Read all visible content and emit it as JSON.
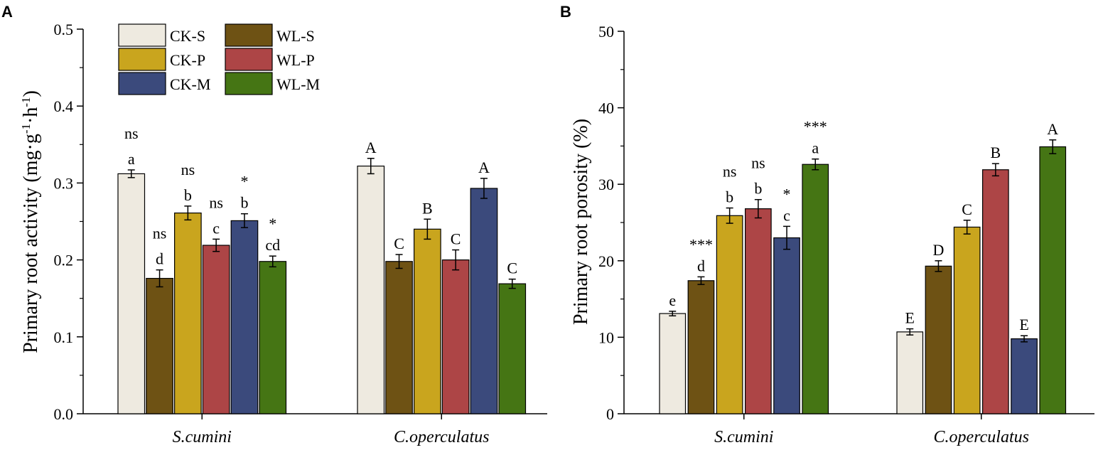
{
  "colors": {
    "CK-S": "#eeeae0",
    "WL-S": "#6e5214",
    "CK-P": "#c9a51e",
    "WL-P": "#ad4546",
    "CK-M": "#3b4a7c",
    "WL-M": "#457514"
  },
  "chart_data": [
    {
      "type": "bar",
      "panel": "A",
      "ylabel_prefix": "Primary root activity (mg·g",
      "ylabel_sup1": "-1",
      "ylabel_mid": "·h",
      "ylabel_sup2": "-1",
      "ylabel_suffix": ")",
      "ylim": [
        0,
        0.5
      ],
      "yticks": [
        "0.0",
        "0.1",
        "0.2",
        "0.3",
        "0.4",
        "0.5"
      ],
      "categories": [
        "S.cumini",
        "C.operculatus"
      ],
      "legend": {
        "placement": "top-left",
        "entries": [
          "CK-S",
          "WL-S",
          "CK-P",
          "WL-P",
          "CK-M",
          "WL-M"
        ]
      },
      "series": [
        {
          "name": "CK-S",
          "values": [
            0.312,
            0.322
          ],
          "errors": [
            0.005,
            0.01
          ],
          "letters": [
            "a",
            "A"
          ],
          "signif": [
            "ns",
            ""
          ]
        },
        {
          "name": "WL-S",
          "values": [
            0.176,
            0.198
          ],
          "errors": [
            0.011,
            0.009
          ],
          "letters": [
            "d",
            "C"
          ],
          "signif": [
            "ns",
            ""
          ]
        },
        {
          "name": "CK-P",
          "values": [
            0.261,
            0.24
          ],
          "errors": [
            0.009,
            0.013
          ],
          "letters": [
            "b",
            "B"
          ],
          "signif": [
            "ns",
            ""
          ]
        },
        {
          "name": "WL-P",
          "values": [
            0.219,
            0.2
          ],
          "errors": [
            0.008,
            0.013
          ],
          "letters": [
            "c",
            "C"
          ],
          "signif": [
            "ns",
            ""
          ]
        },
        {
          "name": "CK-M",
          "values": [
            0.251,
            0.293
          ],
          "errors": [
            0.009,
            0.013
          ],
          "letters": [
            "b",
            "A"
          ],
          "signif": [
            "*",
            ""
          ]
        },
        {
          "name": "WL-M",
          "values": [
            0.198,
            0.169
          ],
          "errors": [
            0.007,
            0.006
          ],
          "letters": [
            "cd",
            "C"
          ],
          "signif": [
            "*",
            ""
          ]
        }
      ]
    },
    {
      "type": "bar",
      "panel": "B",
      "ylabel": "Primary root porosity (%)",
      "ylim": [
        0,
        50
      ],
      "yticks": [
        "0",
        "10",
        "20",
        "30",
        "40",
        "50"
      ],
      "categories": [
        "S.cumini",
        "C.operculatus"
      ],
      "series": [
        {
          "name": "CK-S",
          "values": [
            13.1,
            10.7
          ],
          "errors": [
            0.3,
            0.4
          ],
          "letters": [
            "e",
            "E"
          ],
          "signif": [
            "",
            ""
          ]
        },
        {
          "name": "WL-S",
          "values": [
            17.4,
            19.3
          ],
          "errors": [
            0.5,
            0.7
          ],
          "letters": [
            "d",
            "D"
          ],
          "signif": [
            "***",
            ""
          ]
        },
        {
          "name": "CK-P",
          "values": [
            25.9,
            24.4
          ],
          "errors": [
            1.0,
            0.9
          ],
          "letters": [
            "b",
            "C"
          ],
          "signif": [
            "ns",
            ""
          ]
        },
        {
          "name": "WL-P",
          "values": [
            26.8,
            31.9
          ],
          "errors": [
            1.2,
            0.8
          ],
          "letters": [
            "b",
            "B"
          ],
          "signif": [
            "ns",
            ""
          ]
        },
        {
          "name": "CK-M",
          "values": [
            23.0,
            9.8
          ],
          "errors": [
            1.5,
            0.4
          ],
          "letters": [
            "c",
            "E"
          ],
          "signif": [
            "*",
            ""
          ]
        },
        {
          "name": "WL-M",
          "values": [
            32.6,
            34.9
          ],
          "errors": [
            0.7,
            0.9
          ],
          "letters": [
            "a",
            "A"
          ],
          "signif": [
            "***",
            ""
          ]
        }
      ]
    }
  ]
}
